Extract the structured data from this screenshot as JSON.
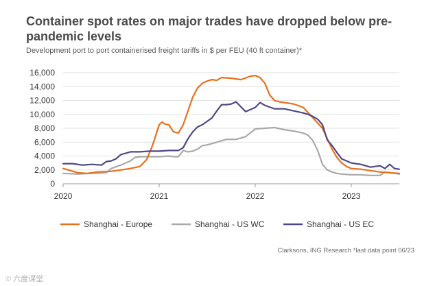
{
  "page": {
    "title": "Container spot rates on major trades have dropped below pre-pandemic levels",
    "subtitle": "Development port to port containerised freight tariffs in $ per FEU (40 ft container)*",
    "source": "Clarksons, ING Research *last data point 06/23",
    "watermark": "© 六度课堂"
  },
  "chart_data": {
    "type": "line",
    "title": "Container spot rates on major trades have dropped below pre-pandemic levels",
    "xlabel": "",
    "ylabel": "$ per FEU",
    "xlim": [
      2020.0,
      2023.5
    ],
    "ylim": [
      0,
      16000
    ],
    "yticks": [
      0,
      2000,
      4000,
      6000,
      8000,
      10000,
      12000,
      14000,
      16000
    ],
    "ytick_labels": [
      "0",
      "2,000",
      "4,000",
      "6,000",
      "8,000",
      "10,000",
      "12,000",
      "14,000",
      "16,000"
    ],
    "xticks": [
      2020,
      2021,
      2022,
      2023
    ],
    "xtick_labels": [
      "2020",
      "2021",
      "2022",
      "2023"
    ],
    "grid": "horizontal",
    "legend": "bottom",
    "series": [
      {
        "name": "Shanghai - Europe",
        "color": "#e8701a",
        "x": [
          2020.0,
          2020.08,
          2020.15,
          2020.25,
          2020.35,
          2020.5,
          2020.6,
          2020.7,
          2020.8,
          2020.87,
          2020.93,
          2021.0,
          2021.03,
          2021.06,
          2021.1,
          2021.15,
          2021.2,
          2021.25,
          2021.3,
          2021.35,
          2021.4,
          2021.45,
          2021.5,
          2021.55,
          2021.6,
          2021.65,
          2021.75,
          2021.85,
          2021.95,
          2022.0,
          2022.05,
          2022.1,
          2022.15,
          2022.2,
          2022.25,
          2022.3,
          2022.4,
          2022.5,
          2022.6,
          2022.7,
          2022.75,
          2022.8,
          2022.85,
          2022.9,
          2022.95,
          2023.0,
          2023.1,
          2023.2,
          2023.3,
          2023.4,
          2023.5
        ],
        "values": [
          2200,
          1900,
          1600,
          1500,
          1700,
          1800,
          2000,
          2200,
          2500,
          3500,
          5500,
          8500,
          8900,
          8600,
          8500,
          7500,
          7300,
          8500,
          10500,
          12500,
          13800,
          14500,
          14800,
          15000,
          14900,
          15300,
          15200,
          15000,
          15500,
          15600,
          15300,
          14500,
          12800,
          12000,
          11800,
          11700,
          11500,
          11000,
          9500,
          8000,
          6500,
          5000,
          3800,
          3000,
          2500,
          2200,
          2100,
          1900,
          1700,
          1600,
          1500
        ]
      },
      {
        "name": "Shanghai - US WC",
        "color": "#a8a8a8",
        "x": [
          2020.0,
          2020.15,
          2020.3,
          2020.45,
          2020.5,
          2020.6,
          2020.7,
          2020.75,
          2020.8,
          2020.9,
          2021.0,
          2021.1,
          2021.15,
          2021.2,
          2021.25,
          2021.3,
          2021.35,
          2021.4,
          2021.45,
          2021.5,
          2021.6,
          2021.7,
          2021.8,
          2021.9,
          2022.0,
          2022.1,
          2022.2,
          2022.3,
          2022.4,
          2022.5,
          2022.55,
          2022.6,
          2022.65,
          2022.7,
          2022.75,
          2022.8,
          2022.85,
          2022.9,
          2023.0,
          2023.1,
          2023.2,
          2023.3,
          2023.35,
          2023.4,
          2023.5
        ],
        "values": [
          1500,
          1400,
          1500,
          1600,
          2200,
          2700,
          3300,
          3800,
          3900,
          3900,
          3900,
          4000,
          3900,
          3900,
          4800,
          4600,
          4700,
          5000,
          5500,
          5600,
          6000,
          6400,
          6400,
          6800,
          7900,
          8000,
          8100,
          7800,
          7600,
          7300,
          7000,
          6200,
          4800,
          2800,
          2000,
          1700,
          1500,
          1400,
          1300,
          1300,
          1200,
          1200,
          1700,
          1600,
          1400
        ]
      },
      {
        "name": "Shanghai - US EC",
        "color": "#4e4786",
        "x": [
          2020.0,
          2020.1,
          2020.2,
          2020.3,
          2020.4,
          2020.45,
          2020.5,
          2020.55,
          2020.6,
          2020.7,
          2020.8,
          2020.9,
          2021.0,
          2021.1,
          2021.2,
          2021.25,
          2021.3,
          2021.35,
          2021.4,
          2021.45,
          2021.5,
          2021.55,
          2021.6,
          2021.65,
          2021.7,
          2021.75,
          2021.8,
          2021.9,
          2021.95,
          2022.0,
          2022.05,
          2022.1,
          2022.2,
          2022.3,
          2022.4,
          2022.5,
          2022.55,
          2022.6,
          2022.65,
          2022.7,
          2022.75,
          2022.8,
          2022.85,
          2022.9,
          2023.0,
          2023.1,
          2023.2,
          2023.3,
          2023.35,
          2023.4,
          2023.45,
          2023.5
        ],
        "values": [
          2900,
          2900,
          2700,
          2800,
          2700,
          3200,
          3300,
          3600,
          4200,
          4600,
          4600,
          4700,
          4700,
          4800,
          4800,
          5200,
          6500,
          7500,
          8200,
          8500,
          9000,
          9500,
          10500,
          11400,
          11400,
          11500,
          11800,
          10400,
          10700,
          11000,
          11700,
          11300,
          10800,
          10800,
          10500,
          10200,
          10000,
          9700,
          9300,
          8500,
          6300,
          5500,
          4500,
          3600,
          3000,
          2800,
          2400,
          2600,
          2200,
          2800,
          2200,
          2100
        ]
      }
    ]
  }
}
